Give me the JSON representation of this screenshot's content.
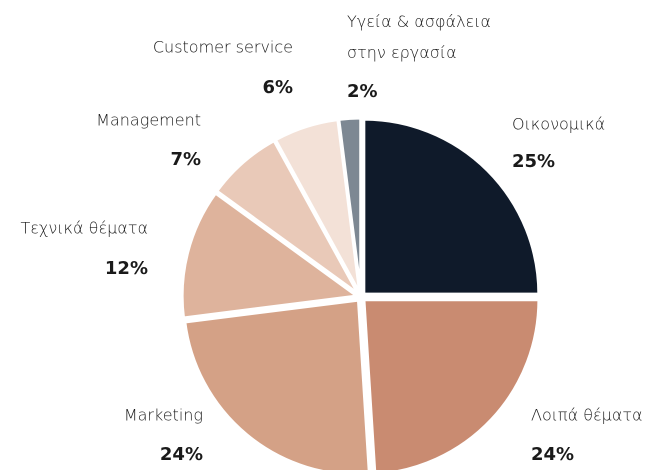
{
  "chart_data": {
    "type": "pie",
    "categories": [
      "Οικονομικά",
      "Λοιπά θέματα",
      "Marketing",
      "Τεχνικά θέματα",
      "Management",
      "Customer service",
      "Υγεία & ασφάλεια\nστην εργασία"
    ],
    "values": [
      25,
      24,
      24,
      12,
      7,
      6,
      2
    ],
    "value_labels": [
      "25%",
      "24%",
      "24%",
      "12%",
      "7%",
      "6%",
      "2%"
    ],
    "colors": [
      "#0f1a2a",
      "#c98b71",
      "#d4a186",
      "#deb39c",
      "#e9c9b8",
      "#f3e1d7",
      "#7d8893"
    ]
  }
}
